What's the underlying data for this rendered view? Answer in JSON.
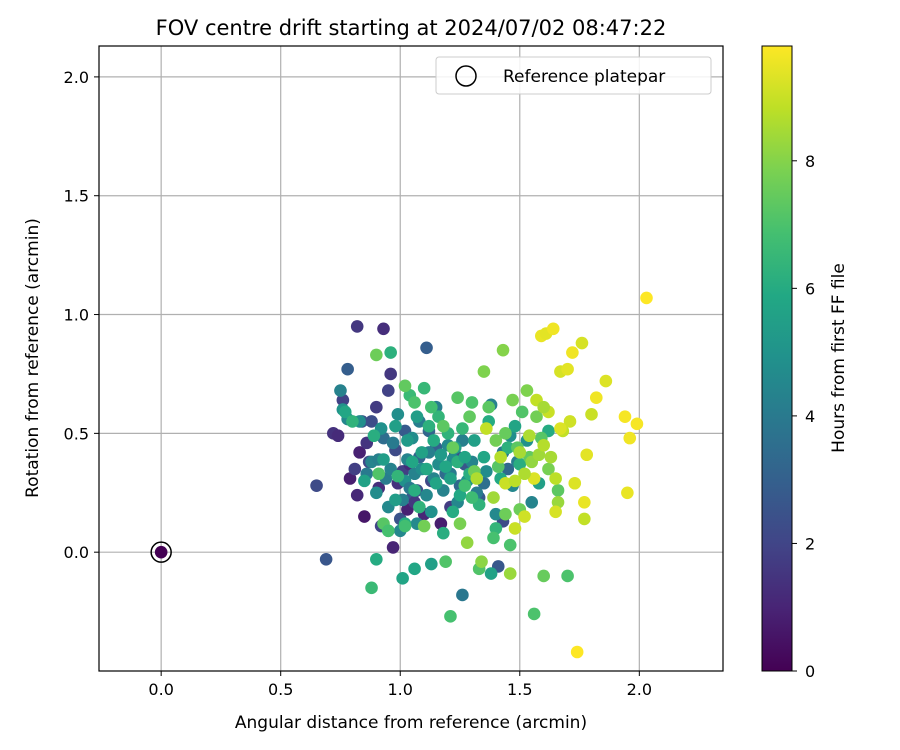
{
  "chart_data": {
    "type": "scatter",
    "title": "FOV centre drift starting at 2024/07/02 08:47:22",
    "xlabel": "Angular distance from reference (arcmin)",
    "ylabel": "Rotation from reference (arcmin)",
    "xlim": [
      -0.26,
      2.35
    ],
    "ylim": [
      -0.5,
      2.13
    ],
    "xticks": [
      0.0,
      0.5,
      1.0,
      1.5,
      2.0
    ],
    "xtick_labels": [
      "0.0",
      "0.5",
      "1.0",
      "1.5",
      "2.0"
    ],
    "yticks": [
      0.0,
      0.5,
      1.0,
      1.5,
      2.0
    ],
    "ytick_labels": [
      "0.0",
      "0.5",
      "1.0",
      "1.5",
      "2.0"
    ],
    "grid": true,
    "legend": {
      "position": "upper-right",
      "entries": [
        "Reference platepar"
      ]
    },
    "colorbar": {
      "label": "Hours from first FF file",
      "range": [
        0,
        9.8
      ],
      "ticks": [
        0,
        2,
        4,
        6,
        8
      ],
      "tick_labels": [
        "0",
        "2",
        "4",
        "6",
        "8"
      ],
      "colormap": "viridis"
    },
    "reference_point": {
      "x": 0.0,
      "y": 0.0,
      "c": 0.0
    },
    "points": [
      {
        "x": 0.82,
        "y": 0.95,
        "c": 1.6
      },
      {
        "x": 0.93,
        "y": 0.94,
        "c": 1.3
      },
      {
        "x": 0.65,
        "y": 0.28,
        "c": 2.2
      },
      {
        "x": 0.69,
        "y": -0.03,
        "c": 2.6
      },
      {
        "x": 0.72,
        "y": 0.5,
        "c": 1.4
      },
      {
        "x": 0.74,
        "y": 0.49,
        "c": 1.2
      },
      {
        "x": 0.76,
        "y": 0.64,
        "c": 1.9
      },
      {
        "x": 0.78,
        "y": 0.77,
        "c": 2.9
      },
      {
        "x": 0.79,
        "y": 0.31,
        "c": 0.8
      },
      {
        "x": 0.81,
        "y": 0.35,
        "c": 1.8
      },
      {
        "x": 0.82,
        "y": 0.24,
        "c": 1.1
      },
      {
        "x": 0.83,
        "y": 0.42,
        "c": 0.9
      },
      {
        "x": 0.84,
        "y": 0.55,
        "c": 2.6
      },
      {
        "x": 0.85,
        "y": 0.15,
        "c": 0.6
      },
      {
        "x": 0.86,
        "y": 0.46,
        "c": 1.5
      },
      {
        "x": 0.87,
        "y": 0.38,
        "c": 2.1
      },
      {
        "x": 0.88,
        "y": 0.55,
        "c": 2.3
      },
      {
        "x": 0.9,
        "y": 0.61,
        "c": 1.7
      },
      {
        "x": 0.91,
        "y": 0.27,
        "c": 1.3
      },
      {
        "x": 0.92,
        "y": 0.11,
        "c": 2.0
      },
      {
        "x": 0.93,
        "y": 0.48,
        "c": 3.5
      },
      {
        "x": 0.95,
        "y": 0.68,
        "c": 1.9
      },
      {
        "x": 0.96,
        "y": 0.75,
        "c": 1.6
      },
      {
        "x": 0.97,
        "y": 0.02,
        "c": 1.0
      },
      {
        "x": 0.98,
        "y": 0.43,
        "c": 2.2
      },
      {
        "x": 0.99,
        "y": 0.29,
        "c": 1.4
      },
      {
        "x": 1.0,
        "y": 0.14,
        "c": 2.5
      },
      {
        "x": 1.01,
        "y": 0.34,
        "c": 1.8
      },
      {
        "x": 1.02,
        "y": 0.51,
        "c": 2.8
      },
      {
        "x": 1.03,
        "y": 0.18,
        "c": 0.9
      },
      {
        "x": 1.04,
        "y": 0.37,
        "c": 1.2
      },
      {
        "x": 1.05,
        "y": 0.23,
        "c": 2.7
      },
      {
        "x": 1.06,
        "y": 0.21,
        "c": 1.6
      },
      {
        "x": 1.07,
        "y": 0.26,
        "c": 2.4
      },
      {
        "x": 1.08,
        "y": 0.4,
        "c": 3.1
      },
      {
        "x": 1.1,
        "y": 0.16,
        "c": 1.1
      },
      {
        "x": 1.11,
        "y": 0.86,
        "c": 2.9
      },
      {
        "x": 1.12,
        "y": 0.51,
        "c": 3.2
      },
      {
        "x": 1.13,
        "y": 0.3,
        "c": 2.1
      },
      {
        "x": 1.15,
        "y": 0.44,
        "c": 3.0
      },
      {
        "x": 1.17,
        "y": 0.12,
        "c": 0.8
      },
      {
        "x": 1.19,
        "y": 0.33,
        "c": 3.4
      },
      {
        "x": 1.21,
        "y": 0.19,
        "c": 1.7
      },
      {
        "x": 1.23,
        "y": 0.41,
        "c": 2.3
      },
      {
        "x": 1.25,
        "y": 0.28,
        "c": 3.3
      },
      {
        "x": 1.27,
        "y": 0.37,
        "c": 2.6
      },
      {
        "x": 1.33,
        "y": 0.23,
        "c": 2.8
      },
      {
        "x": 1.35,
        "y": 0.29,
        "c": 3.6
      },
      {
        "x": 1.41,
        "y": -0.06,
        "c": 2.7
      },
      {
        "x": 1.43,
        "y": 0.13,
        "c": 2.2
      },
      {
        "x": 1.45,
        "y": 0.35,
        "c": 3.3
      },
      {
        "x": 1.26,
        "y": -0.18,
        "c": 3.9
      },
      {
        "x": 0.75,
        "y": 0.68,
        "c": 4.3
      },
      {
        "x": 0.76,
        "y": 0.6,
        "c": 5.0
      },
      {
        "x": 0.78,
        "y": 0.56,
        "c": 4.5
      },
      {
        "x": 0.83,
        "y": 0.55,
        "c": 4.8
      },
      {
        "x": 0.86,
        "y": 0.33,
        "c": 4.0
      },
      {
        "x": 0.88,
        "y": 0.38,
        "c": 4.4
      },
      {
        "x": 0.9,
        "y": 0.25,
        "c": 4.7
      },
      {
        "x": 0.91,
        "y": 0.39,
        "c": 4.2
      },
      {
        "x": 0.92,
        "y": 0.52,
        "c": 4.9
      },
      {
        "x": 0.94,
        "y": 0.31,
        "c": 4.1
      },
      {
        "x": 0.95,
        "y": 0.19,
        "c": 4.6
      },
      {
        "x": 0.96,
        "y": 0.35,
        "c": 4.3
      },
      {
        "x": 0.97,
        "y": 0.46,
        "c": 4.0
      },
      {
        "x": 0.99,
        "y": 0.58,
        "c": 4.8
      },
      {
        "x": 1.0,
        "y": 0.09,
        "c": 4.5
      },
      {
        "x": 1.01,
        "y": 0.22,
        "c": 4.2
      },
      {
        "x": 1.02,
        "y": 0.3,
        "c": 4.9
      },
      {
        "x": 1.03,
        "y": 0.39,
        "c": 4.4
      },
      {
        "x": 1.04,
        "y": 0.27,
        "c": 4.0
      },
      {
        "x": 1.05,
        "y": 0.48,
        "c": 4.7
      },
      {
        "x": 1.06,
        "y": 0.33,
        "c": 4.3
      },
      {
        "x": 1.07,
        "y": 0.12,
        "c": 4.6
      },
      {
        "x": 1.08,
        "y": 0.55,
        "c": 4.1
      },
      {
        "x": 1.09,
        "y": 0.35,
        "c": 4.8
      },
      {
        "x": 1.11,
        "y": 0.24,
        "c": 4.5
      },
      {
        "x": 1.12,
        "y": 0.42,
        "c": 4.2
      },
      {
        "x": 1.13,
        "y": 0.17,
        "c": 4.9
      },
      {
        "x": 1.14,
        "y": 0.31,
        "c": 4.4
      },
      {
        "x": 1.15,
        "y": 0.61,
        "c": 4.1
      },
      {
        "x": 1.16,
        "y": 0.37,
        "c": 4.7
      },
      {
        "x": 1.18,
        "y": 0.26,
        "c": 4.3
      },
      {
        "x": 1.2,
        "y": 0.45,
        "c": 4.6
      },
      {
        "x": 1.21,
        "y": 0.33,
        "c": 4.0
      },
      {
        "x": 1.22,
        "y": 0.39,
        "c": 4.8
      },
      {
        "x": 1.24,
        "y": 0.21,
        "c": 4.5
      },
      {
        "x": 1.26,
        "y": 0.47,
        "c": 4.2
      },
      {
        "x": 1.28,
        "y": 0.3,
        "c": 4.9
      },
      {
        "x": 1.3,
        "y": 0.38,
        "c": 4.4
      },
      {
        "x": 1.32,
        "y": 0.25,
        "c": 4.1
      },
      {
        "x": 1.36,
        "y": 0.34,
        "c": 4.7
      },
      {
        "x": 1.38,
        "y": 0.62,
        "c": 4.3
      },
      {
        "x": 1.4,
        "y": 0.16,
        "c": 4.6
      },
      {
        "x": 1.43,
        "y": 0.42,
        "c": 4.0
      },
      {
        "x": 1.46,
        "y": 0.49,
        "c": 4.8
      },
      {
        "x": 1.47,
        "y": 0.28,
        "c": 4.5
      },
      {
        "x": 1.49,
        "y": 0.38,
        "c": 4.2
      },
      {
        "x": 1.53,
        "y": 0.47,
        "c": 4.9
      },
      {
        "x": 1.55,
        "y": 0.21,
        "c": 4.4
      },
      {
        "x": 0.77,
        "y": 0.59,
        "c": 5.8
      },
      {
        "x": 0.8,
        "y": 0.55,
        "c": 6.3
      },
      {
        "x": 0.85,
        "y": 0.3,
        "c": 5.6
      },
      {
        "x": 0.89,
        "y": 0.49,
        "c": 6.1
      },
      {
        "x": 0.9,
        "y": -0.03,
        "c": 6.0
      },
      {
        "x": 0.93,
        "y": 0.39,
        "c": 5.4
      },
      {
        "x": 0.95,
        "y": 0.09,
        "c": 5.9
      },
      {
        "x": 0.96,
        "y": 0.84,
        "c": 6.2
      },
      {
        "x": 0.98,
        "y": 0.53,
        "c": 5.5
      },
      {
        "x": 0.99,
        "y": 0.32,
        "c": 6.4
      },
      {
        "x": 1.01,
        "y": -0.11,
        "c": 5.7
      },
      {
        "x": 1.02,
        "y": 0.12,
        "c": 6.0
      },
      {
        "x": 1.03,
        "y": 0.47,
        "c": 5.3
      },
      {
        "x": 1.04,
        "y": 0.66,
        "c": 6.6
      },
      {
        "x": 1.05,
        "y": 0.38,
        "c": 5.8
      },
      {
        "x": 1.06,
        "y": 0.26,
        "c": 6.1
      },
      {
        "x": 1.07,
        "y": 0.57,
        "c": 5.4
      },
      {
        "x": 1.08,
        "y": 0.19,
        "c": 6.3
      },
      {
        "x": 1.09,
        "y": 0.42,
        "c": 5.6
      },
      {
        "x": 1.1,
        "y": 0.69,
        "c": 6.5
      },
      {
        "x": 1.11,
        "y": 0.35,
        "c": 5.9
      },
      {
        "x": 1.12,
        "y": 0.53,
        "c": 6.2
      },
      {
        "x": 1.13,
        "y": -0.05,
        "c": 5.5
      },
      {
        "x": 1.14,
        "y": 0.47,
        "c": 6.0
      },
      {
        "x": 1.15,
        "y": 0.29,
        "c": 5.7
      },
      {
        "x": 1.16,
        "y": 0.57,
        "c": 6.4
      },
      {
        "x": 1.17,
        "y": 0.41,
        "c": 5.3
      },
      {
        "x": 1.18,
        "y": 0.08,
        "c": 6.1
      },
      {
        "x": 1.19,
        "y": 0.36,
        "c": 5.8
      },
      {
        "x": 1.2,
        "y": 0.5,
        "c": 6.3
      },
      {
        "x": 1.21,
        "y": 0.31,
        "c": 5.6
      },
      {
        "x": 1.22,
        "y": 0.17,
        "c": 6.0
      },
      {
        "x": 1.23,
        "y": 0.44,
        "c": 5.4
      },
      {
        "x": 1.24,
        "y": 0.38,
        "c": 6.2
      },
      {
        "x": 1.25,
        "y": 0.24,
        "c": 5.9
      },
      {
        "x": 1.26,
        "y": 0.52,
        "c": 6.5
      },
      {
        "x": 1.27,
        "y": 0.4,
        "c": 5.7
      },
      {
        "x": 1.29,
        "y": 0.33,
        "c": 6.1
      },
      {
        "x": 1.31,
        "y": 0.47,
        "c": 5.5
      },
      {
        "x": 1.33,
        "y": 0.2,
        "c": 6.3
      },
      {
        "x": 1.35,
        "y": 0.4,
        "c": 5.8
      },
      {
        "x": 1.37,
        "y": 0.55,
        "c": 6.0
      },
      {
        "x": 1.38,
        "y": -0.09,
        "c": 5.6
      },
      {
        "x": 1.4,
        "y": 0.1,
        "c": 6.4
      },
      {
        "x": 1.42,
        "y": 0.31,
        "c": 5.9
      },
      {
        "x": 1.45,
        "y": 0.44,
        "c": 6.2
      },
      {
        "x": 1.48,
        "y": 0.53,
        "c": 5.7
      },
      {
        "x": 1.5,
        "y": 0.37,
        "c": 6.1
      },
      {
        "x": 1.58,
        "y": 0.29,
        "c": 5.5
      },
      {
        "x": 1.62,
        "y": 0.51,
        "c": 6.0
      },
      {
        "x": 0.98,
        "y": 0.22,
        "c": 5.4
      },
      {
        "x": 1.06,
        "y": -0.07,
        "c": 5.8
      },
      {
        "x": 0.88,
        "y": -0.15,
        "c": 6.6
      },
      {
        "x": 0.9,
        "y": 0.83,
        "c": 7.6
      },
      {
        "x": 0.93,
        "y": 0.12,
        "c": 7.2
      },
      {
        "x": 0.95,
        "y": 0.09,
        "c": 6.9
      },
      {
        "x": 1.02,
        "y": 0.7,
        "c": 7.4
      },
      {
        "x": 1.06,
        "y": 0.63,
        "c": 7.0
      },
      {
        "x": 1.1,
        "y": 0.11,
        "c": 7.7
      },
      {
        "x": 1.13,
        "y": 0.61,
        "c": 6.8
      },
      {
        "x": 1.18,
        "y": 0.53,
        "c": 7.3
      },
      {
        "x": 1.19,
        "y": -0.04,
        "c": 7.1
      },
      {
        "x": 1.21,
        "y": -0.27,
        "c": 6.9
      },
      {
        "x": 1.22,
        "y": 0.44,
        "c": 7.5
      },
      {
        "x": 1.24,
        "y": 0.65,
        "c": 7.2
      },
      {
        "x": 1.25,
        "y": 0.12,
        "c": 7.8
      },
      {
        "x": 1.27,
        "y": 0.28,
        "c": 6.8
      },
      {
        "x": 1.29,
        "y": 0.57,
        "c": 7.4
      },
      {
        "x": 1.3,
        "y": 0.63,
        "c": 7.0
      },
      {
        "x": 1.31,
        "y": 0.34,
        "c": 7.6
      },
      {
        "x": 1.33,
        "y": -0.07,
        "c": 7.1
      },
      {
        "x": 1.35,
        "y": 0.76,
        "c": 7.9
      },
      {
        "x": 1.37,
        "y": 0.61,
        "c": 7.3
      },
      {
        "x": 1.39,
        "y": 0.06,
        "c": 6.9
      },
      {
        "x": 1.4,
        "y": 0.47,
        "c": 7.7
      },
      {
        "x": 1.41,
        "y": 0.36,
        "c": 7.2
      },
      {
        "x": 1.43,
        "y": 0.85,
        "c": 8.0
      },
      {
        "x": 1.44,
        "y": 0.5,
        "c": 7.5
      },
      {
        "x": 1.46,
        "y": 0.03,
        "c": 7.0
      },
      {
        "x": 1.47,
        "y": 0.64,
        "c": 7.8
      },
      {
        "x": 1.49,
        "y": 0.44,
        "c": 7.3
      },
      {
        "x": 1.5,
        "y": 0.18,
        "c": 7.6
      },
      {
        "x": 1.51,
        "y": 0.59,
        "c": 7.1
      },
      {
        "x": 1.53,
        "y": 0.68,
        "c": 7.9
      },
      {
        "x": 1.54,
        "y": 0.4,
        "c": 7.4
      },
      {
        "x": 1.56,
        "y": -0.26,
        "c": 7.0
      },
      {
        "x": 1.57,
        "y": 0.57,
        "c": 7.7
      },
      {
        "x": 1.59,
        "y": 0.48,
        "c": 7.2
      },
      {
        "x": 1.6,
        "y": -0.1,
        "c": 7.5
      },
      {
        "x": 1.62,
        "y": 0.35,
        "c": 7.8
      },
      {
        "x": 1.66,
        "y": 0.26,
        "c": 7.3
      },
      {
        "x": 1.7,
        "y": -0.1,
        "c": 7.0
      },
      {
        "x": 1.3,
        "y": 0.23,
        "c": 6.7
      },
      {
        "x": 1.44,
        "y": 0.16,
        "c": 7.6
      },
      {
        "x": 1.02,
        "y": 0.11,
        "c": 6.8
      },
      {
        "x": 0.91,
        "y": 0.33,
        "c": 7.1
      },
      {
        "x": 1.28,
        "y": 0.04,
        "c": 8.2
      },
      {
        "x": 1.32,
        "y": 0.31,
        "c": 8.6
      },
      {
        "x": 1.36,
        "y": 0.52,
        "c": 8.9
      },
      {
        "x": 1.39,
        "y": 0.23,
        "c": 8.4
      },
      {
        "x": 1.42,
        "y": 0.4,
        "c": 8.7
      },
      {
        "x": 1.44,
        "y": 0.29,
        "c": 9.0
      },
      {
        "x": 1.46,
        "y": -0.09,
        "c": 8.3
      },
      {
        "x": 1.48,
        "y": 0.3,
        "c": 8.8
      },
      {
        "x": 1.5,
        "y": 0.42,
        "c": 8.5
      },
      {
        "x": 1.52,
        "y": 0.15,
        "c": 9.1
      },
      {
        "x": 1.54,
        "y": 0.49,
        "c": 8.6
      },
      {
        "x": 1.55,
        "y": 0.38,
        "c": 8.2
      },
      {
        "x": 1.56,
        "y": 0.31,
        "c": 9.3
      },
      {
        "x": 1.57,
        "y": 0.64,
        "c": 8.9
      },
      {
        "x": 1.58,
        "y": 0.41,
        "c": 8.4
      },
      {
        "x": 1.59,
        "y": 0.91,
        "c": 9.5
      },
      {
        "x": 1.6,
        "y": 0.45,
        "c": 8.7
      },
      {
        "x": 1.61,
        "y": 0.92,
        "c": 9.4
      },
      {
        "x": 1.62,
        "y": 0.59,
        "c": 9.0
      },
      {
        "x": 1.63,
        "y": 0.4,
        "c": 8.5
      },
      {
        "x": 1.64,
        "y": 0.94,
        "c": 9.6
      },
      {
        "x": 1.65,
        "y": 0.31,
        "c": 8.8
      },
      {
        "x": 1.66,
        "y": 0.21,
        "c": 8.3
      },
      {
        "x": 1.67,
        "y": 0.76,
        "c": 9.2
      },
      {
        "x": 1.68,
        "y": 0.51,
        "c": 8.9
      },
      {
        "x": 1.7,
        "y": 0.77,
        "c": 9.4
      },
      {
        "x": 1.71,
        "y": 0.55,
        "c": 9.1
      },
      {
        "x": 1.72,
        "y": 0.84,
        "c": 9.6
      },
      {
        "x": 1.73,
        "y": 0.29,
        "c": 9.3
      },
      {
        "x": 1.74,
        "y": -0.42,
        "c": 9.8
      },
      {
        "x": 1.76,
        "y": 0.88,
        "c": 9.2
      },
      {
        "x": 1.77,
        "y": 0.21,
        "c": 9.5
      },
      {
        "x": 1.78,
        "y": 0.41,
        "c": 9.4
      },
      {
        "x": 1.8,
        "y": 0.58,
        "c": 9.0
      },
      {
        "x": 1.82,
        "y": 0.65,
        "c": 9.6
      },
      {
        "x": 1.86,
        "y": 0.72,
        "c": 9.3
      },
      {
        "x": 1.94,
        "y": 0.57,
        "c": 9.7
      },
      {
        "x": 1.95,
        "y": 0.25,
        "c": 9.5
      },
      {
        "x": 1.96,
        "y": 0.48,
        "c": 9.6
      },
      {
        "x": 1.99,
        "y": 0.54,
        "c": 9.7
      },
      {
        "x": 2.03,
        "y": 1.07,
        "c": 9.8
      },
      {
        "x": 1.34,
        "y": -0.04,
        "c": 8.1
      },
      {
        "x": 1.48,
        "y": 0.1,
        "c": 9.0
      },
      {
        "x": 1.65,
        "y": 0.17,
        "c": 9.2
      },
      {
        "x": 1.77,
        "y": 0.14,
        "c": 8.9
      },
      {
        "x": 1.6,
        "y": 0.61,
        "c": 8.5
      },
      {
        "x": 1.67,
        "y": 0.52,
        "c": 9.3
      },
      {
        "x": 1.52,
        "y": 0.33,
        "c": 8.6
      }
    ]
  }
}
